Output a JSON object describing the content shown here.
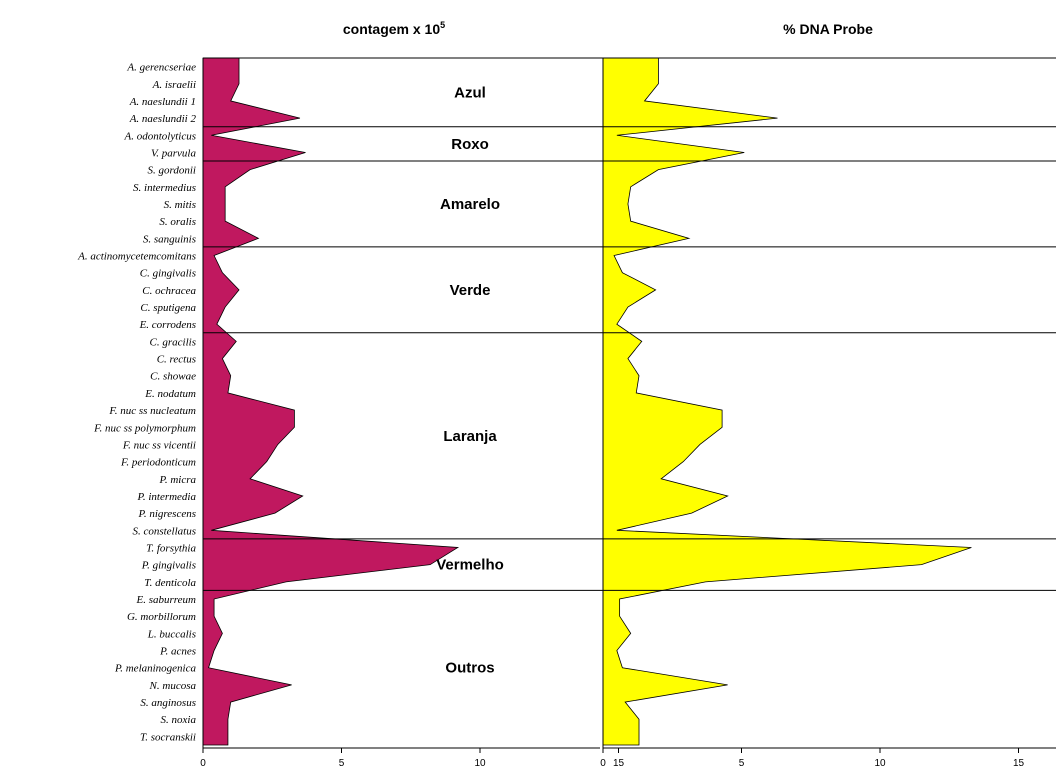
{
  "chart_data": {
    "type": "area",
    "orientation": "horizontal",
    "categories": [
      "A. gerencseriae",
      "A. israelii",
      "A. naeslundii 1",
      "A. naeslundii 2",
      "A. odontolyticus",
      "V. parvula",
      "S. gordonii",
      "S. intermedius",
      "S. mitis",
      "S. oralis",
      "S. sanguinis",
      "A. actinomycetemcomitans",
      "C. gingivalis",
      "C. ochracea",
      "C. sputigena",
      "E. corrodens",
      "C. gracilis",
      "C. rectus",
      "C. showae",
      "E. nodatum",
      "F. nuc ss nucleatum",
      "F. nuc ss polymorphum",
      "F. nuc ss vicentii",
      "F. periodonticum",
      "P. micra",
      "P. intermedia",
      "P. nigrescens",
      "S. constellatus",
      "T. forsythia",
      "P. gingivalis",
      "T. denticola",
      "E. saburreum",
      "G. morbillorum",
      "L. buccalis",
      "P. acnes",
      "P. melaninogenica",
      "N. mucosa",
      "S. anginosus",
      "S. noxia",
      "T. socranskii"
    ],
    "panels": [
      {
        "title": "contagem x 10",
        "title_sup": "5",
        "color": "#c0185f",
        "xlim": [
          0,
          16
        ],
        "ticks": [
          "0",
          "5",
          "10",
          "15"
        ],
        "values": [
          1.3,
          1.3,
          1.0,
          3.5,
          0.3,
          3.7,
          1.7,
          0.8,
          0.8,
          0.8,
          2.0,
          0.4,
          0.7,
          1.3,
          0.8,
          0.5,
          1.2,
          0.7,
          1.0,
          0.9,
          3.3,
          3.3,
          2.7,
          2.3,
          1.7,
          3.6,
          2.6,
          0.3,
          9.2,
          8.2,
          3.0,
          0.4,
          0.4,
          0.7,
          0.4,
          0.2,
          3.2,
          1.0,
          0.9,
          0.9
        ]
      },
      {
        "title": "% DNA Probe",
        "title_sup": "",
        "color": "#ffff00",
        "xlim": [
          0,
          16
        ],
        "ticks": [
          "0",
          "5",
          "10",
          "15"
        ],
        "values": [
          2.0,
          2.0,
          1.5,
          6.3,
          0.5,
          5.1,
          2.0,
          1.0,
          0.9,
          1.0,
          3.1,
          0.4,
          0.7,
          1.9,
          0.9,
          0.5,
          1.4,
          0.9,
          1.3,
          1.2,
          4.3,
          4.3,
          3.5,
          2.9,
          2.1,
          4.5,
          3.2,
          0.5,
          13.3,
          11.5,
          3.7,
          0.6,
          0.6,
          1.0,
          0.5,
          0.7,
          4.5,
          0.8,
          1.3,
          1.3
        ]
      }
    ],
    "groups": [
      {
        "label": "Azul",
        "start": 0,
        "end": 3
      },
      {
        "label": "Roxo",
        "start": 4,
        "end": 5
      },
      {
        "label": "Amarelo",
        "start": 6,
        "end": 10
      },
      {
        "label": "Verde",
        "start": 11,
        "end": 15
      },
      {
        "label": "Laranja",
        "start": 16,
        "end": 27
      },
      {
        "label": "Vermelho",
        "start": 28,
        "end": 30
      },
      {
        "label": "Outros",
        "start": 31,
        "end": 39
      }
    ]
  }
}
